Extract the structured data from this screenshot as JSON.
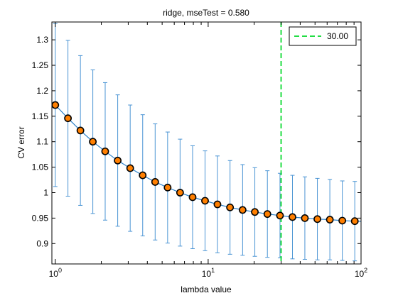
{
  "chart_data": {
    "type": "line",
    "title": "ridge, mseTest = 0.580",
    "xlabel": "lambda value",
    "ylabel": "CV error",
    "x_scale": "log",
    "xlim": [
      0.95,
      100
    ],
    "ylim": [
      0.86,
      1.335
    ],
    "grid": false,
    "x_ticks": [
      {
        "value": 1,
        "base": "10",
        "exp": "0"
      },
      {
        "value": 10,
        "base": "10",
        "exp": "1"
      },
      {
        "value": 100,
        "base": "10",
        "exp": "2"
      }
    ],
    "y_ticks": [
      {
        "value": 0.9,
        "label": "0.9"
      },
      {
        "value": 0.95,
        "label": "0.95"
      },
      {
        "value": 1.0,
        "label": "1"
      },
      {
        "value": 1.05,
        "label": "1.05"
      },
      {
        "value": 1.1,
        "label": "1.1"
      },
      {
        "value": 1.15,
        "label": "1.15"
      },
      {
        "value": 1.2,
        "label": "1.2"
      },
      {
        "value": 1.25,
        "label": "1.25"
      },
      {
        "value": 1.3,
        "label": "1.3"
      }
    ],
    "x": [
      1.0,
      1.21,
      1.46,
      1.76,
      2.12,
      2.56,
      3.09,
      3.73,
      4.5,
      5.43,
      6.55,
      7.91,
      9.54,
      11.5,
      13.9,
      16.8,
      20.2,
      24.4,
      29.5,
      35.6,
      42.9,
      51.8,
      62.5,
      75.4,
      91.0,
      110.0
    ],
    "y": [
      1.172,
      1.146,
      1.122,
      1.1,
      1.081,
      1.063,
      1.048,
      1.034,
      1.021,
      1.01,
      1.0,
      0.991,
      0.984,
      0.977,
      0.971,
      0.966,
      0.962,
      0.958,
      0.955,
      0.952,
      0.95,
      0.948,
      0.947,
      0.945,
      0.944,
      0.943
    ],
    "err": [
      0.16,
      0.153,
      0.147,
      0.141,
      0.135,
      0.129,
      0.124,
      0.119,
      0.114,
      0.109,
      0.105,
      0.101,
      0.098,
      0.095,
      0.092,
      0.089,
      0.087,
      0.085,
      0.083,
      0.082,
      0.081,
      0.08,
      0.079,
      0.078,
      0.078,
      0.077
    ],
    "colors": {
      "line": "#2b80c8",
      "errorbar": "#4a94d4",
      "marker_fill": "#ff7f00",
      "marker_edge": "#000000",
      "vline": "#22dd44",
      "axes": "#000000"
    },
    "vline": {
      "x": 30.0,
      "style": "dashed"
    },
    "legend": {
      "entries": [
        {
          "label": "30.00"
        }
      ],
      "position": "top-right"
    }
  }
}
